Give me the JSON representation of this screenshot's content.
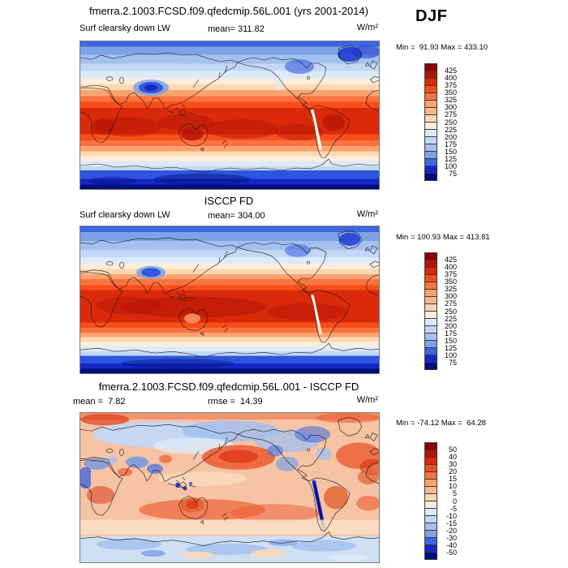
{
  "header": {
    "title": "fmerra.2.1003.FCSD.f09.qfedcmip.56L.001 (yrs 2001-2014)",
    "season": "DJF"
  },
  "panels": [
    {
      "name": "model",
      "variable": "Surf clearsky down LW",
      "mean": "mean= 311.82",
      "unit": "W/m²",
      "minmax": "Min =  91.93 Max = 433.10",
      "colorbar": {
        "labels": [
          "425",
          "400",
          "375",
          "350",
          "325",
          "300",
          "275",
          "250",
          "225",
          "200",
          "175",
          "150",
          "125",
          "100",
          "75"
        ],
        "colors": [
          "#8b0000",
          "#b51307",
          "#da2a0b",
          "#f84e1a",
          "#fa7340",
          "#fca36e",
          "#fcb88c",
          "#fdd7b4",
          "#fdeeda",
          "#ddeafa",
          "#c2d8f4",
          "#a3c0ee",
          "#7da2e8",
          "#3f66e0",
          "#1427c8",
          "#000d7a"
        ]
      }
    },
    {
      "name": "obs",
      "title": "ISCCP FD",
      "variable": "Surf clearsky down LW",
      "mean": "mean= 304.00",
      "unit": "W/m²",
      "minmax": "Min = 100.93 Max = 413.81",
      "colorbar": {
        "labels": [
          "425",
          "400",
          "375",
          "350",
          "325",
          "300",
          "275",
          "250",
          "225",
          "200",
          "175",
          "150",
          "125",
          "100",
          "75"
        ],
        "colors": [
          "#8b0000",
          "#b51307",
          "#da2a0b",
          "#f84e1a",
          "#fa7340",
          "#fca36e",
          "#fcb88c",
          "#fdd7b4",
          "#fdeeda",
          "#ddeafa",
          "#c2d8f4",
          "#a3c0ee",
          "#7da2e8",
          "#3f66e0",
          "#1427c8",
          "#000d7a"
        ]
      }
    },
    {
      "name": "difference",
      "title": "fmerra.2.1003.FCSD.f09.qfedcmip.56L.001 - ISCCP FD",
      "mean": "mean =  7.82",
      "rmse": "rmse =  14.39",
      "unit": "W/m²",
      "minmax": "Min = -74.12 Max =  64.28",
      "colorbar": {
        "labels": [
          "50",
          "40",
          "30",
          "20",
          "15",
          "10",
          "5",
          "0",
          "-5",
          "-10",
          "-15",
          "-20",
          "-30",
          "-40",
          "-50"
        ],
        "colors": [
          "#8b0000",
          "#b51307",
          "#da2a0b",
          "#f84e1a",
          "#fa7340",
          "#fca36e",
          "#fcb88c",
          "#fdd7b4",
          "#fdeeda",
          "#ddeafa",
          "#c2d8f4",
          "#a3c0ee",
          "#7da2e8",
          "#3f66e0",
          "#1427c8",
          "#000d7a"
        ]
      }
    }
  ],
  "chart_data": [
    {
      "type": "heatmap",
      "panel": "top",
      "title": "fmerra.2.1003.FCSD.f09.qfedcmip.56L.001 (yrs 2001-2014)",
      "field": "Surf clearsky down LW",
      "season": "DJF",
      "units": "W/m²",
      "mean": 311.82,
      "min": 91.93,
      "max": 433.1,
      "contour_levels": [
        75,
        100,
        125,
        150,
        175,
        200,
        225,
        250,
        275,
        300,
        325,
        350,
        375,
        400,
        425
      ],
      "domain": {
        "lon": [
          0,
          360
        ],
        "lat": [
          -90,
          90
        ],
        "projection": "equirectangular, Pacific-centered"
      },
      "palette": "blue-white-red, 16 levels",
      "legend_position": "right",
      "pattern": "high values (dark red ~400+) across tropics, white ~250 in mid-latitudes, deep blue minima over Tibet, Greenland, Arctic and Antarctica"
    },
    {
      "type": "heatmap",
      "panel": "middle",
      "title": "ISCCP FD",
      "field": "Surf clearsky down LW",
      "season": "DJF",
      "units": "W/m²",
      "mean": 304.0,
      "min": 100.93,
      "max": 413.81,
      "contour_levels": [
        75,
        100,
        125,
        150,
        175,
        200,
        225,
        250,
        275,
        300,
        325,
        350,
        375,
        400,
        425
      ],
      "domain": {
        "lon": [
          0,
          360
        ],
        "lat": [
          -90,
          90
        ],
        "projection": "equirectangular, Pacific-centered"
      },
      "palette": "blue-white-red, 16 levels",
      "legend_position": "right",
      "pattern": "same zonal structure as model but smoother; broad dark-red tropical band, blue polar caps, blue Tibetan Plateau minimum"
    },
    {
      "type": "heatmap",
      "panel": "bottom",
      "title": "fmerra.2.1003.FCSD.f09.qfedcmip.56L.001 - ISCCP FD",
      "field": "Surf clearsky down LW difference (model minus obs)",
      "season": "DJF",
      "units": "W/m²",
      "mean": 7.82,
      "rmse": 14.39,
      "min": -74.12,
      "max": 64.28,
      "contour_levels": [
        -50,
        -40,
        -30,
        -20,
        -15,
        -10,
        -5,
        0,
        5,
        10,
        15,
        20,
        30,
        40,
        50
      ],
      "domain": {
        "lon": [
          0,
          360
        ],
        "lat": [
          -90,
          90
        ],
        "projection": "equirectangular, Pacific-centered"
      },
      "palette": "blue-white-red, 16 levels",
      "legend_position": "right",
      "pattern": "mostly weak positive bias (light salmon/red); negative (blue) patches over Siberia, central Asia, Sahara-Arabia, Andes and around Antarctica; strong positive blobs over N Pacific, N Atlantic, subtropical southern oceans"
    }
  ]
}
